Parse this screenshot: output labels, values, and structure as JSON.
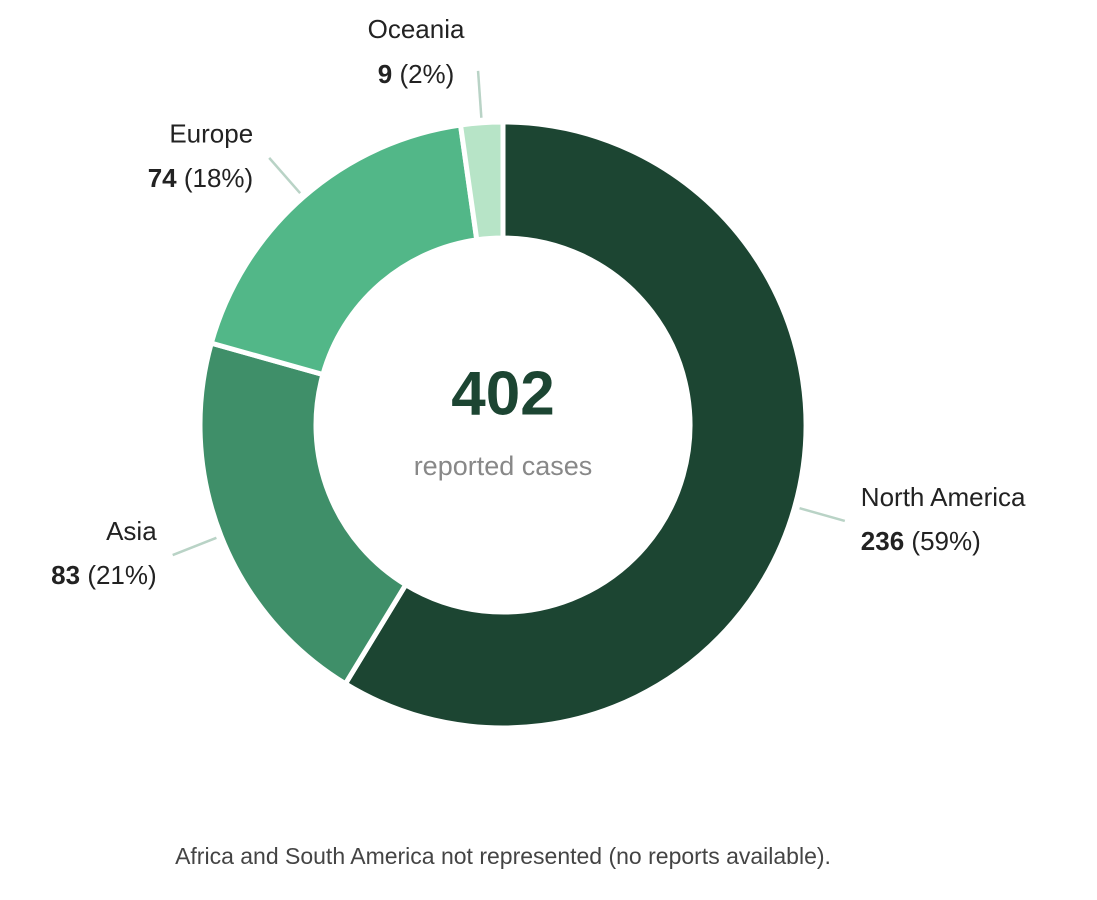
{
  "chart_data": {
    "type": "donut",
    "categories": [
      "North America",
      "Asia",
      "Europe",
      "Oceania"
    ],
    "values": [
      236,
      83,
      74,
      9
    ],
    "value_labels": [
      "236 (59%)",
      "83 (21%)",
      "74 (18%)",
      "9 (2%)"
    ],
    "colors": [
      "#1c4532",
      "#3f8f69",
      "#52b788",
      "#b7e4c7"
    ],
    "total": 402,
    "total_label": "reported cases",
    "note": "Africa and South America not represented (no reports available)."
  }
}
